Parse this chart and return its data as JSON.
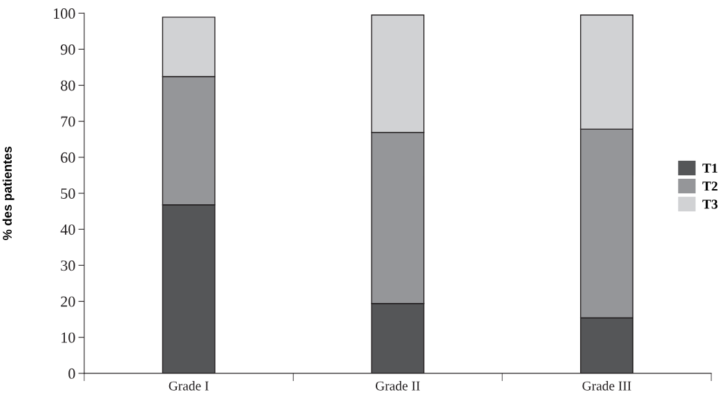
{
  "chart_data": {
    "type": "bar",
    "stacked": true,
    "ylabel": "% des patientes",
    "categories": [
      "Grade I",
      "Grade II",
      "Grade III"
    ],
    "series": [
      {
        "name": "T1",
        "color": "#555658",
        "values": [
          46.8,
          19.4,
          15.4
        ]
      },
      {
        "name": "T2",
        "color": "#959699",
        "values": [
          35.6,
          47.5,
          52.4
        ]
      },
      {
        "name": "T3",
        "color": "#d1d2d4",
        "values": [
          16.5,
          32.6,
          31.7
        ]
      }
    ],
    "ylim": [
      0,
      100
    ],
    "yticks": [
      0,
      10,
      20,
      30,
      40,
      50,
      60,
      70,
      80,
      90,
      100
    ],
    "grid": false,
    "legend": "right"
  }
}
